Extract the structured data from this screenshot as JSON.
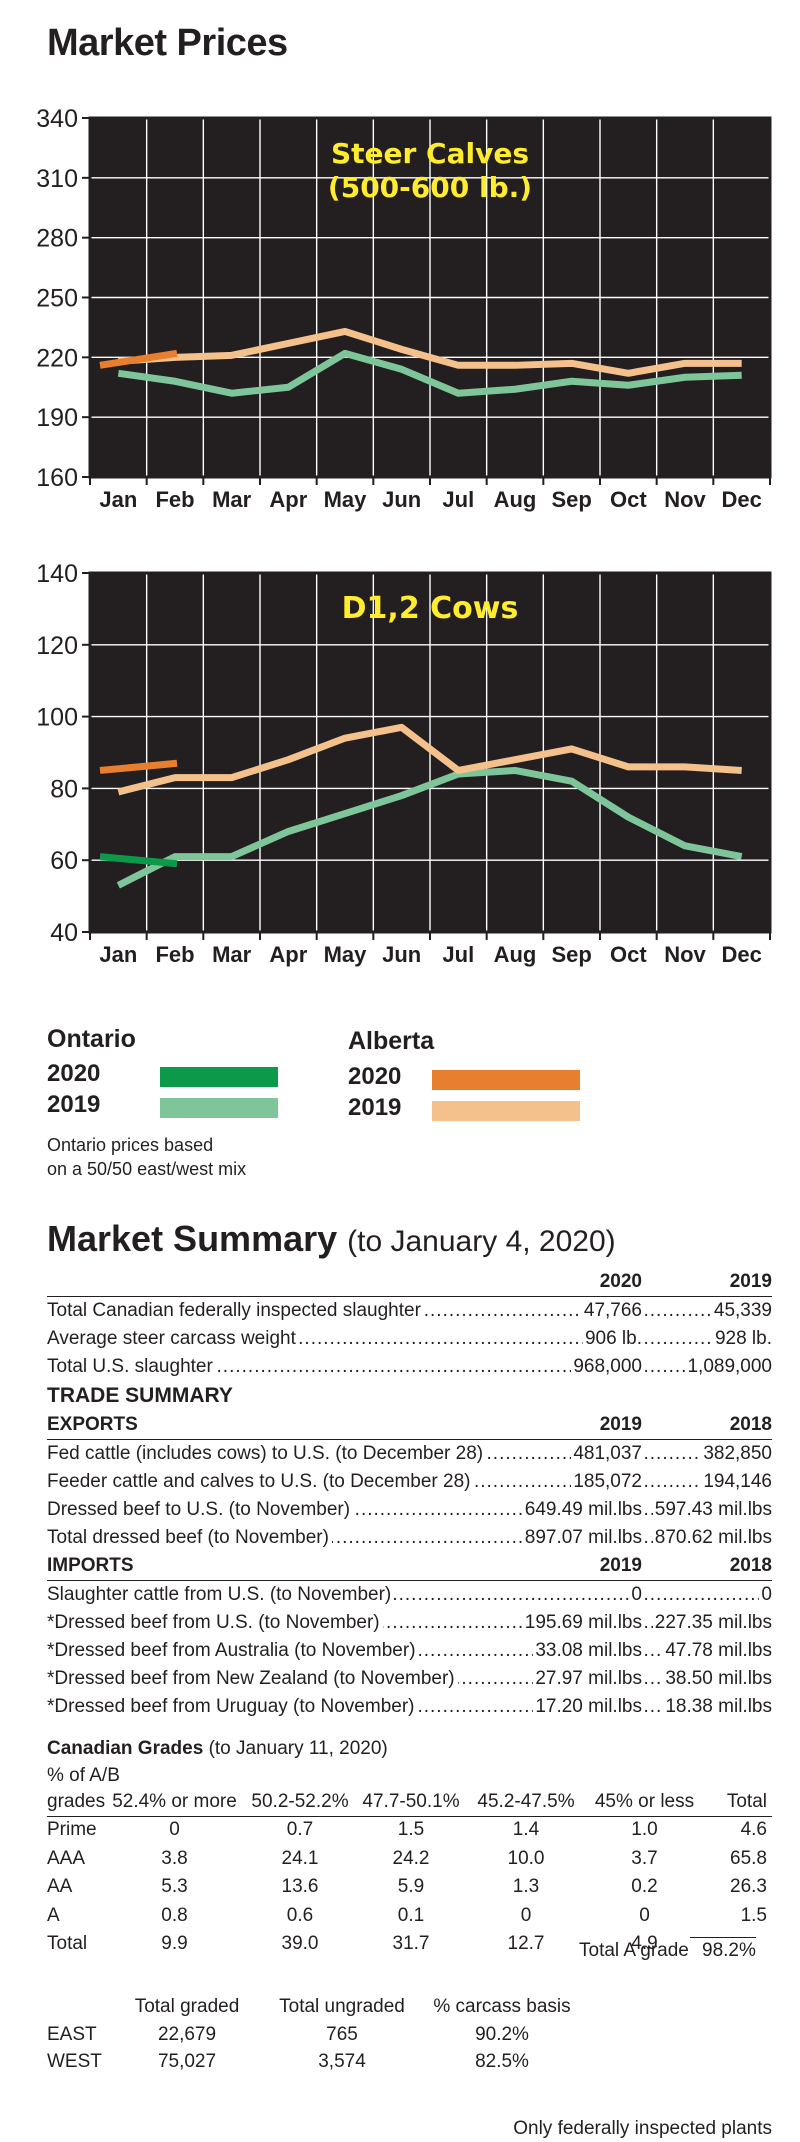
{
  "page_title": "Market Prices",
  "chart_data": [
    {
      "type": "line",
      "title": "Steer Calves\n(500-600 lb.)",
      "categories": [
        "Jan",
        "Feb",
        "Mar",
        "Apr",
        "May",
        "Jun",
        "Jul",
        "Aug",
        "Sep",
        "Oct",
        "Nov",
        "Dec"
      ],
      "yticks": [
        160,
        190,
        220,
        250,
        280,
        310,
        340
      ],
      "ylim": [
        160,
        340
      ],
      "grid": true,
      "series": [
        {
          "name": "Ontario 2019",
          "color": "#7fc59a",
          "values": [
            212,
            208,
            202,
            205,
            222,
            214,
            202,
            204,
            208,
            206,
            210,
            211
          ]
        },
        {
          "name": "Alberta 2019",
          "color": "#f4c08c",
          "values": [
            218,
            220,
            221,
            227,
            233,
            224,
            216,
            216,
            217,
            212,
            217,
            217
          ]
        },
        {
          "name": "Ontario 2020",
          "color": "#0c9a4a",
          "values": [
            212,
            null,
            null,
            null,
            null,
            null,
            null,
            null,
            null,
            null,
            null,
            null
          ]
        },
        {
          "name": "Alberta 2020",
          "color": "#e87f2f",
          "values": [
            216,
            222,
            null,
            null,
            null,
            null,
            null,
            null,
            null,
            null,
            null,
            null
          ]
        }
      ]
    },
    {
      "type": "line",
      "title": "D1,2 Cows",
      "categories": [
        "Jan",
        "Feb",
        "Mar",
        "Apr",
        "May",
        "Jun",
        "Jul",
        "Aug",
        "Sep",
        "Oct",
        "Nov",
        "Dec"
      ],
      "yticks": [
        40,
        60,
        80,
        100,
        120,
        140
      ],
      "ylim": [
        40,
        140
      ],
      "grid": true,
      "series": [
        {
          "name": "Ontario 2019",
          "color": "#7fc59a",
          "values": [
            53,
            61,
            61,
            68,
            73,
            78,
            84,
            85,
            82,
            72,
            64,
            61
          ]
        },
        {
          "name": "Alberta 2019",
          "color": "#f4c08c",
          "values": [
            79,
            83,
            83,
            88,
            94,
            97,
            85,
            88,
            91,
            86,
            86,
            85
          ]
        },
        {
          "name": "Ontario 2020",
          "color": "#0c9a4a",
          "values": [
            61,
            59,
            null,
            null,
            null,
            null,
            null,
            null,
            null,
            null,
            null,
            null
          ]
        },
        {
          "name": "Alberta 2020",
          "color": "#e87f2f",
          "values": [
            85,
            87,
            null,
            null,
            null,
            null,
            null,
            null,
            null,
            null,
            null,
            null
          ]
        }
      ]
    }
  ],
  "legend": {
    "ontario": {
      "title": "Ontario",
      "y2020": "2020",
      "y2019": "2019",
      "color2020": "#0c9a4a",
      "color2019": "#7fc59a",
      "note_line1": "Ontario prices based",
      "note_line2": "on a 50/50 east/west mix"
    },
    "alberta": {
      "title": "Alberta",
      "y2020": "2020",
      "y2019": "2019",
      "color2020": "#e87f2f",
      "color2019": "#f4c08c"
    }
  },
  "summary": {
    "title": "Market Summary",
    "subtitle": "(to January 4, 2020)",
    "header": {
      "c1": "2020",
      "c2": "2019"
    },
    "rows": [
      {
        "label": "Total Canadian federally inspected slaughter",
        "c1": "47,766",
        "c2": "45,339"
      },
      {
        "label": "Average steer carcass weight",
        "c1": "906 lb.",
        "c2": "928 lb."
      },
      {
        "label": "Total U.S. slaughter",
        "c1": "968,000",
        "c2": "1,089,000"
      }
    ],
    "trade_title": "TRADE SUMMARY",
    "exports": {
      "label": "EXPORTS",
      "c1": "2019",
      "c2": "2018",
      "rows": [
        {
          "label": "Fed cattle (includes cows) to U.S. (to December 28)",
          "c1": "481,037",
          "c2": "382,850"
        },
        {
          "label": "Feeder cattle and calves to U.S. (to December 28)",
          "c1": "185,072",
          "c2": "194,146"
        },
        {
          "label": "Dressed beef to U.S. (to November)",
          "c1": "649.49 mil.lbs",
          "c2": "597.43 mil.lbs"
        },
        {
          "label": "Total dressed beef (to November)",
          "c1": "897.07 mil.lbs",
          "c2": "870.62 mil.lbs"
        }
      ]
    },
    "imports": {
      "label": "IMPORTS",
      "c1": "2019",
      "c2": "2018",
      "rows": [
        {
          "label": "Slaughter cattle from U.S. (to November)",
          "c1": "0",
          "c2": "0"
        },
        {
          "label": "*Dressed beef from U.S. (to November)",
          "c1": "195.69 mil.lbs",
          "c2": "227.35 mil.lbs"
        },
        {
          "label": "*Dressed beef from Australia (to November)",
          "c1": "33.08 mil.lbs",
          "c2": "47.78 mil.lbs"
        },
        {
          "label": "*Dressed beef from New Zealand (to November)",
          "c1": "27.97 mil.lbs",
          "c2": "38.50 mil.lbs"
        },
        {
          "label": "*Dressed beef from Uruguay (to November)",
          "c1": "17.20 mil.lbs",
          "c2": "18.38 mil.lbs"
        }
      ]
    }
  },
  "grades": {
    "title": "Canadian Grades",
    "subtitle": "(to January 11, 2020)",
    "sub_label": "% of A/B",
    "columns": [
      "grades",
      "52.4% or more",
      "50.2-52.2%",
      "47.7-50.1%",
      "45.2-47.5%",
      "45% or less",
      "Total"
    ],
    "rows": [
      [
        "Prime",
        "0",
        "0.7",
        "1.5",
        "1.4",
        "1.0",
        "4.6"
      ],
      [
        "AAA",
        "3.8",
        "24.1",
        "24.2",
        "10.0",
        "3.7",
        "65.8"
      ],
      [
        "AA",
        "5.3",
        "13.6",
        "5.9",
        "1.3",
        "0.2",
        "26.3"
      ],
      [
        "A",
        "0.8",
        "0.6",
        "0.1",
        "0",
        "0",
        "1.5"
      ],
      [
        "Total",
        "9.9",
        "39.0",
        "31.7",
        "12.7",
        "4.9",
        ""
      ]
    ],
    "total_a_label": "Total A grade",
    "total_a_value": "98.2%",
    "regional_headers": [
      "Total graded",
      "Total ungraded",
      "% carcass basis"
    ],
    "regional": [
      {
        "region": "EAST",
        "graded": "22,679",
        "ungraded": "765",
        "pct": "90.2%"
      },
      {
        "region": "WEST",
        "graded": "75,027",
        "ungraded": "3,574",
        "pct": "82.5%"
      }
    ],
    "footnote": "Only federally inspected plants"
  }
}
